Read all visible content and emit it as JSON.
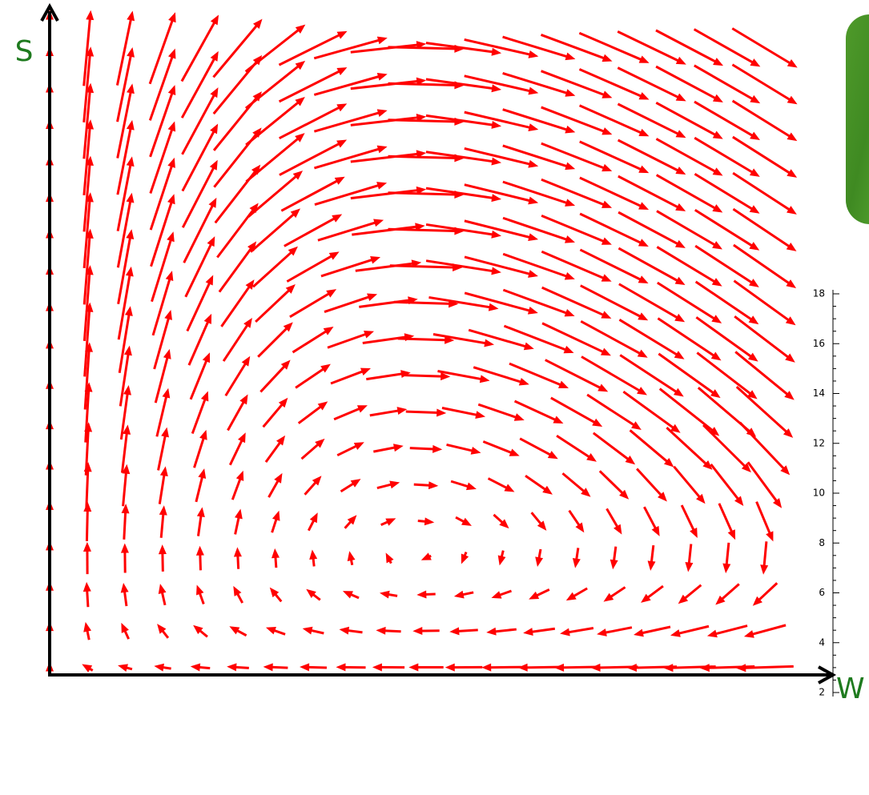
{
  "field_plot": {
    "y_axis_label": "S",
    "x_axis_label": "W"
  },
  "inset_chart": {
    "ylim": [
      2,
      18
    ],
    "yticks": [
      2,
      4,
      6,
      8,
      10,
      12,
      14,
      16,
      18
    ]
  }
}
